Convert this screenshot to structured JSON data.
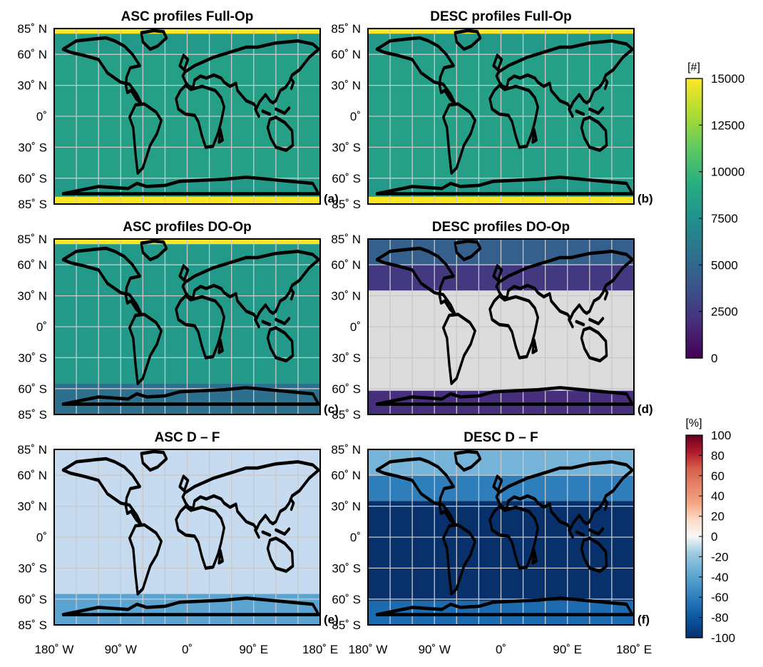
{
  "chart_data": {
    "type": "heatmap",
    "panels": [
      {
        "id": "a",
        "title": "ASC profiles Full-Op",
        "label": "(a)",
        "colormap": "viridis",
        "bands": [
          {
            "lat_from": 85,
            "lat_to": 80,
            "value": 15000
          },
          {
            "lat_from": 80,
            "lat_to": 60,
            "value": 8000
          },
          {
            "lat_from": 60,
            "lat_to": -60,
            "value": 8500
          },
          {
            "lat_from": -60,
            "lat_to": -78,
            "value": 8000
          },
          {
            "lat_from": -78,
            "lat_to": -85,
            "value": 15000
          }
        ]
      },
      {
        "id": "b",
        "title": "DESC profiles Full-Op",
        "label": "(b)",
        "colormap": "viridis",
        "bands": [
          {
            "lat_from": 85,
            "lat_to": 80,
            "value": 15000
          },
          {
            "lat_from": 80,
            "lat_to": 60,
            "value": 8000
          },
          {
            "lat_from": 60,
            "lat_to": -60,
            "value": 8500
          },
          {
            "lat_from": -60,
            "lat_to": -78,
            "value": 8000
          },
          {
            "lat_from": -78,
            "lat_to": -85,
            "value": 15000
          }
        ]
      },
      {
        "id": "c",
        "title": "ASC profiles DO-Op",
        "label": "(c)",
        "colormap": "viridis",
        "bands": [
          {
            "lat_from": 85,
            "lat_to": 80,
            "value": 15000
          },
          {
            "lat_from": 80,
            "lat_to": -55,
            "value": 8000
          },
          {
            "lat_from": -55,
            "lat_to": -85,
            "value": 5500
          }
        ]
      },
      {
        "id": "d",
        "title": "DESC profiles DO-Op",
        "label": "(d)",
        "colormap": "viridis",
        "bands": [
          {
            "lat_from": 85,
            "lat_to": 60,
            "value": 4500
          },
          {
            "lat_from": 60,
            "lat_to": 35,
            "value": 2500
          },
          {
            "lat_from": 35,
            "lat_to": -62,
            "value": 0
          },
          {
            "lat_from": -62,
            "lat_to": -85,
            "value": 2000
          }
        ]
      },
      {
        "id": "e",
        "title": "ASC D – F",
        "label": "(e)",
        "colormap": "diverging",
        "bands": [
          {
            "lat_from": 85,
            "lat_to": -55,
            "value": 0
          },
          {
            "lat_from": -55,
            "lat_to": -85,
            "value": -40
          }
        ]
      },
      {
        "id": "f",
        "title": "DESC D – F",
        "label": "(f)",
        "colormap": "diverging",
        "bands": [
          {
            "lat_from": 85,
            "lat_to": 60,
            "value": -30
          },
          {
            "lat_from": 60,
            "lat_to": 35,
            "value": -60
          },
          {
            "lat_from": 35,
            "lat_to": -62,
            "value": -100
          },
          {
            "lat_from": -62,
            "lat_to": -85,
            "value": -70
          }
        ]
      }
    ],
    "lat_tick_labels": [
      "85˚ N",
      "60˚ N",
      "30˚ N",
      "0˚",
      "30˚ S",
      "60˚ S",
      "85˚ S"
    ],
    "lat_tick_values": [
      85,
      60,
      30,
      0,
      -30,
      -60,
      -85
    ],
    "lon_tick_labels": [
      "180˚ W",
      "90˚ W",
      "0˚",
      "90˚ E",
      "180˚ E"
    ],
    "lon_tick_values": [
      -180,
      -90,
      0,
      90,
      180
    ],
    "xlim": [
      -180,
      180
    ],
    "ylim": [
      -85,
      85
    ],
    "grid": true,
    "colorbars": [
      {
        "unit": "[#]",
        "range": [
          0,
          15000
        ],
        "ticks": [
          15000,
          12500,
          10000,
          7500,
          5000,
          2500,
          0
        ],
        "tick_labels": [
          "15000",
          "12500",
          "10000",
          "7500",
          "5000",
          "2500",
          "0"
        ],
        "colormap": "viridis"
      },
      {
        "unit": "[%]",
        "range": [
          -100,
          100
        ],
        "ticks": [
          100,
          80,
          60,
          40,
          20,
          0,
          -20,
          -40,
          -60,
          -80,
          -100
        ],
        "tick_labels": [
          "100",
          "80",
          "60",
          "40",
          "20",
          "0",
          "-20",
          "-40",
          "-60",
          "-80",
          "-100"
        ],
        "colormap": "diverging"
      }
    ]
  },
  "colors": {
    "viridis": [
      "#440154",
      "#472d7b",
      "#3b528b",
      "#2c728e",
      "#21918c",
      "#28ae80",
      "#5ec962",
      "#addc30",
      "#fde725"
    ],
    "diverging": [
      "#08306b",
      "#08519c",
      "#2171b5",
      "#4292c6",
      "#6baed6",
      "#9ecae1",
      "#c6dbef",
      "#f7f7f7",
      "#fddbc7",
      "#f4a582",
      "#d6604d",
      "#b2182b",
      "#67001f"
    ],
    "nodata": "#dcdcdc",
    "grid": "#c8c8c8",
    "coast": "#000000"
  }
}
